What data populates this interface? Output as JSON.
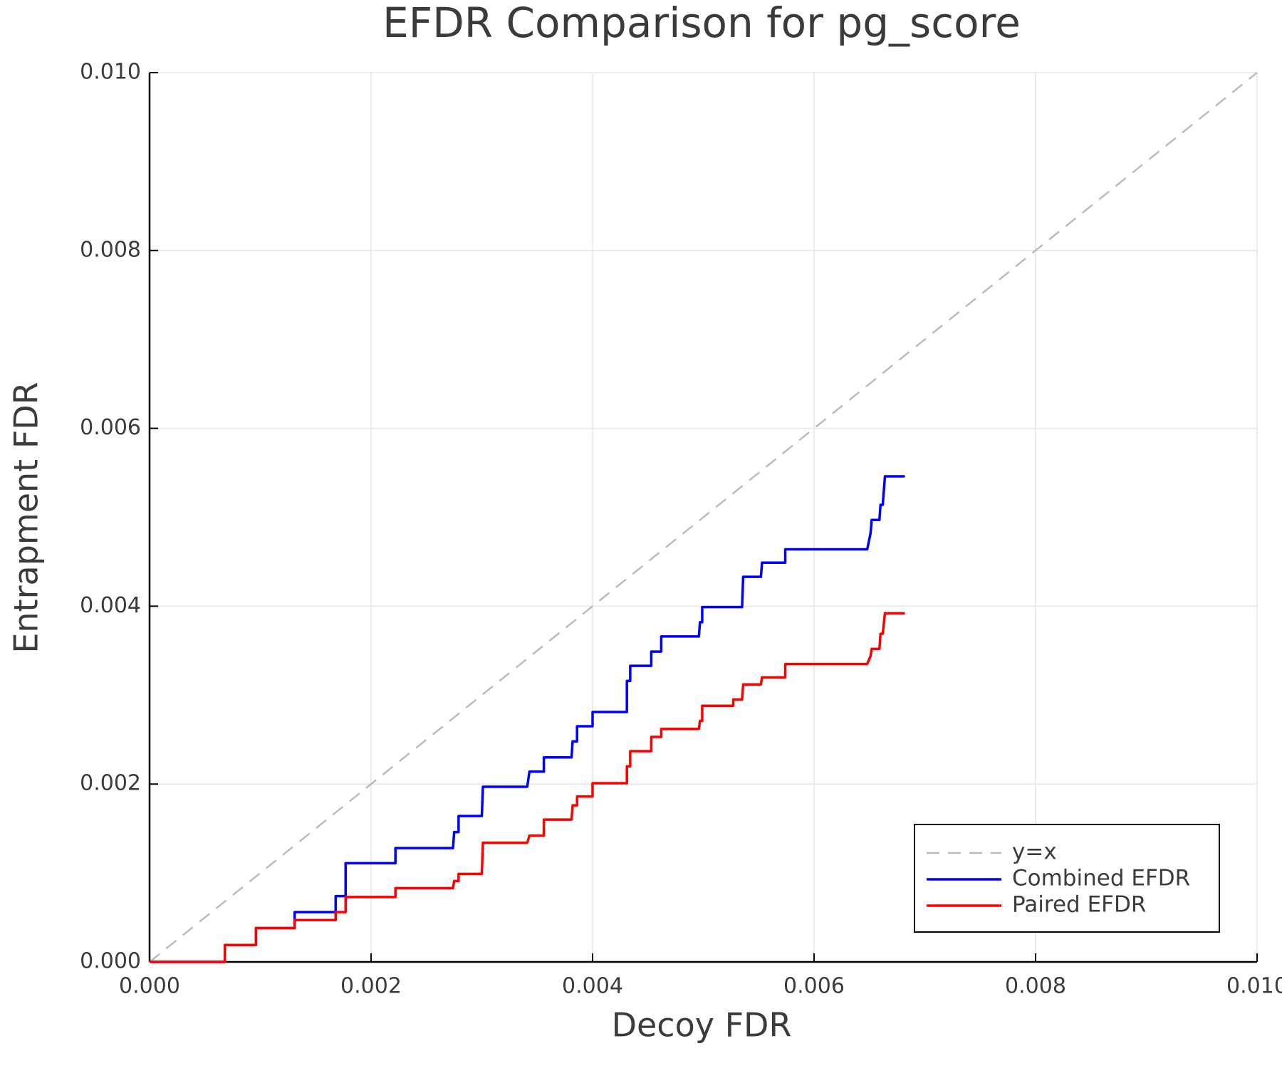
{
  "chart_data": {
    "type": "line",
    "title": "EFDR Comparison for pg_score",
    "x_label": "Decoy FDR",
    "y_label": "Entrapment FDR",
    "xlim": [
      0,
      0.01
    ],
    "ylim": [
      0,
      0.01
    ],
    "xticks": [
      {
        "value": 0,
        "label": "0.000"
      },
      {
        "value": 0.002,
        "label": "0.002"
      },
      {
        "value": 0.004,
        "label": "0.004"
      },
      {
        "value": 0.006,
        "label": "0.006"
      },
      {
        "value": 0.008,
        "label": "0.008"
      },
      {
        "value": 0.01,
        "label": "0.010"
      }
    ],
    "yticks": [
      {
        "value": 0,
        "label": "0.000"
      },
      {
        "value": 0.002,
        "label": "0.002"
      },
      {
        "value": 0.004,
        "label": "0.004"
      },
      {
        "value": 0.006,
        "label": "0.006"
      },
      {
        "value": 0.008,
        "label": "0.008"
      },
      {
        "value": 0.01,
        "label": "0.010"
      }
    ],
    "grid": true,
    "legend": "bottom right",
    "series": [
      {
        "name": "y=x",
        "color": "#bbbbbb",
        "style": "dashed",
        "x": [
          0,
          0.01
        ],
        "values": [
          0,
          0.01
        ]
      },
      {
        "name": "Combined EFDR",
        "color": "#0000ff",
        "style": "solid",
        "x": [
          0,
          0.00068,
          0.00068,
          0.00096,
          0.00096,
          0.00131,
          0.00131,
          0.00168,
          0.00168,
          0.00177,
          0.00177,
          0.00222,
          0.00222,
          0.00274,
          0.00275,
          0.00279,
          0.00279,
          0.003,
          0.00301,
          0.00341,
          0.00343,
          0.00356,
          0.00356,
          0.00381,
          0.00382,
          0.00386,
          0.00386,
          0.004,
          0.004,
          0.00431,
          0.00431,
          0.00434,
          0.00434,
          0.00453,
          0.00453,
          0.00462,
          0.00462,
          0.00496,
          0.00497,
          0.00499,
          0.00499,
          0.00535,
          0.00536,
          0.00552,
          0.00553,
          0.00574,
          0.00574,
          0.00648,
          0.00651,
          0.00652,
          0.00659,
          0.0066,
          0.00662,
          0.00664,
          0.00682
        ],
        "values": [
          0,
          0,
          0.00019,
          0.00019,
          0.00038,
          0.00038,
          0.00056,
          0.00056,
          0.00074,
          0.00074,
          0.00111,
          0.00111,
          0.00128,
          0.00128,
          0.00146,
          0.00146,
          0.00164,
          0.00164,
          0.00197,
          0.00197,
          0.00214,
          0.00214,
          0.0023,
          0.0023,
          0.00248,
          0.00248,
          0.00265,
          0.00265,
          0.00281,
          0.00281,
          0.00316,
          0.00316,
          0.00333,
          0.00333,
          0.00349,
          0.00349,
          0.00366,
          0.00366,
          0.00382,
          0.00382,
          0.00399,
          0.00399,
          0.00433,
          0.00433,
          0.00449,
          0.00449,
          0.00464,
          0.00464,
          0.00482,
          0.00497,
          0.00497,
          0.00514,
          0.00514,
          0.00546,
          0.00546
        ]
      },
      {
        "name": "Paired EFDR",
        "color": "#ff0000",
        "style": "solid",
        "x": [
          0,
          0.00068,
          0.00068,
          0.00096,
          0.00096,
          0.00131,
          0.00131,
          0.00168,
          0.00168,
          0.00177,
          0.00177,
          0.00222,
          0.00222,
          0.00274,
          0.00275,
          0.00279,
          0.00279,
          0.003,
          0.00301,
          0.00341,
          0.00343,
          0.00356,
          0.00356,
          0.00381,
          0.00382,
          0.00386,
          0.00386,
          0.004,
          0.004,
          0.00431,
          0.00431,
          0.00434,
          0.00434,
          0.00453,
          0.00453,
          0.00462,
          0.00462,
          0.00496,
          0.00497,
          0.00499,
          0.00499,
          0.00527,
          0.00527,
          0.00535,
          0.00536,
          0.00552,
          0.00553,
          0.00574,
          0.00574,
          0.00648,
          0.00651,
          0.00652,
          0.00659,
          0.0066,
          0.00662,
          0.00664,
          0.00682
        ],
        "values": [
          0,
          0,
          0.00019,
          0.00019,
          0.00038,
          0.00038,
          0.00047,
          0.00047,
          0.00056,
          0.00056,
          0.00073,
          0.00073,
          0.00083,
          0.00083,
          0.00091,
          0.00091,
          0.00099,
          0.00099,
          0.00134,
          0.00134,
          0.00142,
          0.00142,
          0.0016,
          0.0016,
          0.00176,
          0.00176,
          0.00186,
          0.00186,
          0.00201,
          0.00201,
          0.0022,
          0.0022,
          0.00237,
          0.00237,
          0.00253,
          0.00253,
          0.00262,
          0.00262,
          0.00271,
          0.00271,
          0.00288,
          0.00288,
          0.00295,
          0.00295,
          0.00312,
          0.00312,
          0.0032,
          0.0032,
          0.00335,
          0.00335,
          0.00344,
          0.00352,
          0.00352,
          0.00369,
          0.00369,
          0.00392,
          0.00392
        ]
      }
    ]
  }
}
